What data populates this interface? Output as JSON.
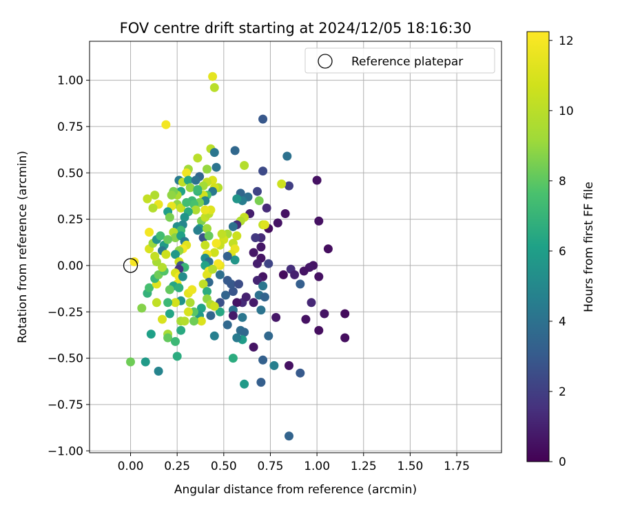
{
  "chart_data": {
    "type": "scatter",
    "title": "FOV centre drift starting at 2024/12/05 18:16:30",
    "xlabel": "Angular distance from reference (arcmin)",
    "ylabel": "Rotation from reference (arcmin)",
    "xlim": [
      -0.22,
      1.99
    ],
    "ylim": [
      -1.01,
      1.21
    ],
    "xticks": [
      "0.00",
      "0.25",
      "0.50",
      "0.75",
      "1.00",
      "1.25",
      "1.50",
      "1.75"
    ],
    "yticks": [
      "−1.00",
      "−0.75",
      "−0.50",
      "−0.25",
      "0.00",
      "0.25",
      "0.50",
      "0.75",
      "1.00"
    ],
    "grid": true,
    "legend": {
      "position": "top-right",
      "entries": [
        "Reference platepar"
      ]
    },
    "reference_point": {
      "x": 0.0,
      "y": 0.0
    },
    "colorbar": {
      "label": "Hours from first FF file",
      "min": 0,
      "max": 12.25,
      "ticks": [
        "0",
        "2",
        "4",
        "6",
        "8",
        "10",
        "12"
      ],
      "colormap": "viridis"
    },
    "series": [
      {
        "points": [
          [
            1.0,
            0.46,
            0.5
          ],
          [
            1.01,
            0.24,
            0.5
          ],
          [
            1.06,
            0.09,
            0.4
          ],
          [
            0.98,
            0.0,
            0.6
          ],
          [
            0.96,
            -0.01,
            0.7
          ],
          [
            1.01,
            -0.06,
            0.5
          ],
          [
            0.93,
            -0.03,
            0.6
          ],
          [
            0.83,
            0.28,
            0.5
          ],
          [
            0.79,
            0.23,
            0.6
          ],
          [
            0.74,
            0.2,
            0.4
          ],
          [
            0.82,
            -0.05,
            0.3
          ],
          [
            0.86,
            -0.02,
            1.4
          ],
          [
            0.88,
            -0.05,
            1.0
          ],
          [
            0.91,
            -0.1,
            3.2
          ],
          [
            0.97,
            -0.2,
            1.2
          ],
          [
            1.04,
            -0.26,
            0.6
          ],
          [
            0.94,
            -0.29,
            0.5
          ],
          [
            1.01,
            -0.35,
            0.4
          ],
          [
            1.15,
            -0.26,
            0.3
          ],
          [
            1.15,
            -0.39,
            0.4
          ],
          [
            0.78,
            -0.28,
            0.7
          ],
          [
            0.85,
            -0.54,
            0.5
          ],
          [
            0.91,
            -0.58,
            3.0
          ],
          [
            0.85,
            -0.92,
            3.4
          ],
          [
            0.77,
            -0.54,
            4.6
          ],
          [
            0.7,
            -0.63,
            3.2
          ],
          [
            0.61,
            -0.64,
            5.8
          ],
          [
            0.71,
            -0.51,
            3.3
          ],
          [
            0.74,
            -0.38,
            3.6
          ],
          [
            0.66,
            -0.44,
            0.6
          ],
          [
            0.71,
            0.79,
            2.9
          ],
          [
            0.84,
            0.59,
            4.0
          ],
          [
            0.85,
            0.43,
            2.0
          ],
          [
            0.81,
            0.44,
            10.6
          ],
          [
            0.71,
            0.51,
            2.4
          ],
          [
            0.68,
            0.4,
            2.2
          ],
          [
            0.69,
            0.35,
            8.5
          ],
          [
            0.73,
            0.31,
            1.3
          ],
          [
            0.71,
            0.22,
            10.3
          ],
          [
            0.72,
            0.22,
            11.2
          ],
          [
            0.7,
            0.15,
            1.3
          ],
          [
            0.67,
            0.15,
            1.8
          ],
          [
            0.7,
            0.1,
            0.7
          ],
          [
            0.66,
            0.07,
            0.7
          ],
          [
            0.7,
            0.04,
            0.6
          ],
          [
            0.68,
            0.01,
            0.9
          ],
          [
            0.74,
            0.01,
            2.2
          ],
          [
            0.71,
            -0.06,
            0.6
          ],
          [
            0.68,
            -0.08,
            1.1
          ],
          [
            0.71,
            -0.11,
            4.2
          ],
          [
            0.69,
            -0.16,
            4.0
          ],
          [
            0.72,
            -0.17,
            3.4
          ],
          [
            0.66,
            -0.2,
            0.8
          ],
          [
            0.7,
            -0.24,
            4.1
          ],
          [
            0.6,
            -0.2,
            1.3
          ],
          [
            0.62,
            -0.17,
            1.0
          ],
          [
            0.57,
            -0.2,
            0.6
          ],
          [
            0.55,
            -0.24,
            4.0
          ],
          [
            0.55,
            -0.27,
            0.8
          ],
          [
            0.6,
            -0.28,
            4.2
          ],
          [
            0.52,
            -0.32,
            3.6
          ],
          [
            0.59,
            -0.35,
            3.8
          ],
          [
            0.61,
            -0.36,
            3.6
          ],
          [
            0.6,
            -0.4,
            5.9
          ],
          [
            0.57,
            -0.39,
            4.4
          ],
          [
            0.55,
            -0.5,
            6.6
          ],
          [
            0.45,
            -0.38,
            4.6
          ],
          [
            0.48,
            -0.2,
            2.6
          ],
          [
            0.48,
            -0.25,
            6.4
          ],
          [
            0.51,
            -0.16,
            3.4
          ],
          [
            0.55,
            -0.14,
            2.8
          ],
          [
            0.54,
            -0.1,
            2.9
          ],
          [
            0.58,
            -0.1,
            2.5
          ],
          [
            0.52,
            -0.08,
            3.0
          ],
          [
            0.48,
            -0.05,
            3.9
          ],
          [
            0.43,
            0.63,
            10.0
          ],
          [
            0.45,
            0.61,
            4.2
          ],
          [
            0.46,
            0.53,
            4.1
          ],
          [
            0.41,
            0.52,
            9.0
          ],
          [
            0.37,
            0.48,
            3.5
          ],
          [
            0.44,
            0.46,
            11.1
          ],
          [
            0.41,
            0.45,
            10.3
          ],
          [
            0.39,
            0.43,
            9.3
          ],
          [
            0.47,
            0.42,
            9.8
          ],
          [
            0.45,
            0.42,
            10.8
          ],
          [
            0.56,
            0.62,
            3.6
          ],
          [
            0.61,
            0.54,
            9.8
          ],
          [
            0.59,
            0.39,
            3.5
          ],
          [
            0.63,
            0.37,
            3.9
          ],
          [
            0.6,
            0.35,
            4.5
          ],
          [
            0.57,
            0.36,
            5.6
          ],
          [
            0.64,
            0.28,
            0.9
          ],
          [
            0.61,
            0.26,
            10.4
          ],
          [
            0.59,
            0.24,
            9.7
          ],
          [
            0.57,
            0.22,
            1.4
          ],
          [
            0.55,
            0.21,
            4.0
          ],
          [
            0.57,
            0.16,
            10.6
          ],
          [
            0.55,
            0.12,
            10.3
          ],
          [
            0.56,
            0.09,
            11.6
          ],
          [
            0.54,
            0.06,
            11.2
          ],
          [
            0.56,
            0.03,
            5.6
          ],
          [
            0.52,
            0.05,
            3.3
          ],
          [
            0.52,
            0.17,
            9.4
          ],
          [
            0.5,
            0.14,
            10.8
          ],
          [
            0.49,
            0.17,
            10.2
          ],
          [
            0.48,
            0.11,
            10.5
          ],
          [
            0.46,
            0.12,
            11.9
          ],
          [
            0.45,
            0.07,
            10.7
          ],
          [
            0.48,
            0.0,
            11.5
          ],
          [
            0.47,
            0.01,
            12.0
          ],
          [
            0.44,
            1.02,
            11.4
          ],
          [
            0.45,
            0.96,
            10.0
          ],
          [
            0.44,
            0.4,
            4.3
          ],
          [
            0.41,
            0.38,
            7.6
          ],
          [
            0.39,
            0.38,
            10.7
          ],
          [
            0.4,
            0.35,
            4.8
          ],
          [
            0.37,
            0.34,
            8.5
          ],
          [
            0.36,
            0.4,
            6.8
          ],
          [
            0.33,
            0.35,
            7.2
          ],
          [
            0.34,
            0.33,
            7.6
          ],
          [
            0.35,
            0.3,
            9.6
          ],
          [
            0.38,
            0.24,
            8.6
          ],
          [
            0.37,
            0.2,
            5.8
          ],
          [
            0.36,
            0.19,
            4.6
          ],
          [
            0.39,
            0.15,
            2.7
          ],
          [
            0.41,
            0.2,
            9.2
          ],
          [
            0.4,
            0.26,
            10.3
          ],
          [
            0.42,
            0.28,
            10.0
          ],
          [
            0.43,
            0.3,
            11.2
          ],
          [
            0.4,
            0.3,
            11.6
          ],
          [
            0.42,
            0.16,
            8.2
          ],
          [
            0.4,
            0.11,
            10.4
          ],
          [
            0.41,
            0.06,
            11.8
          ],
          [
            0.4,
            0.04,
            5.3
          ],
          [
            0.42,
            0.02,
            4.0
          ],
          [
            0.4,
            0.0,
            6.2
          ],
          [
            0.42,
            -0.03,
            12.0
          ],
          [
            0.41,
            -0.05,
            11.3
          ],
          [
            0.44,
            -0.02,
            9.9
          ],
          [
            0.42,
            -0.09,
            3.6
          ],
          [
            0.39,
            -0.1,
            10.2
          ],
          [
            0.41,
            -0.14,
            6.6
          ],
          [
            0.41,
            -0.18,
            8.9
          ],
          [
            0.43,
            -0.21,
            9.7
          ],
          [
            0.45,
            -0.22,
            10.6
          ],
          [
            0.43,
            -0.27,
            3.5
          ],
          [
            0.38,
            -0.23,
            6.2
          ],
          [
            0.37,
            -0.27,
            5.7
          ],
          [
            0.38,
            -0.3,
            11.1
          ],
          [
            0.34,
            -0.3,
            8.3
          ],
          [
            0.34,
            -0.25,
            7.9
          ],
          [
            0.31,
            -0.25,
            11.0
          ],
          [
            0.32,
            -0.2,
            9.6
          ],
          [
            0.31,
            -0.15,
            11.4
          ],
          [
            0.33,
            -0.13,
            11.7
          ],
          [
            0.36,
            0.58,
            10.0
          ],
          [
            0.31,
            0.52,
            9.2
          ],
          [
            0.3,
            0.5,
            11.8
          ],
          [
            0.26,
            0.46,
            4.4
          ],
          [
            0.28,
            0.45,
            10.2
          ],
          [
            0.27,
            0.4,
            6.2
          ],
          [
            0.25,
            0.38,
            9.5
          ],
          [
            0.23,
            0.4,
            8.5
          ],
          [
            0.25,
            0.33,
            8.9
          ],
          [
            0.27,
            0.31,
            10.4
          ],
          [
            0.3,
            0.34,
            7.4
          ],
          [
            0.31,
            0.29,
            6.6
          ],
          [
            0.29,
            0.26,
            5.6
          ],
          [
            0.28,
            0.22,
            4.9
          ],
          [
            0.25,
            0.21,
            5.3
          ],
          [
            0.27,
            0.19,
            7.3
          ],
          [
            0.23,
            0.18,
            10.0
          ],
          [
            0.24,
            0.15,
            8.7
          ],
          [
            0.27,
            0.16,
            6.1
          ],
          [
            0.29,
            0.13,
            4.4
          ],
          [
            0.3,
            0.11,
            11.3
          ],
          [
            0.28,
            0.09,
            11.9
          ],
          [
            0.26,
            0.08,
            8.9
          ],
          [
            0.24,
            0.06,
            5.7
          ],
          [
            0.26,
            0.02,
            10.7
          ],
          [
            0.27,
            0.0,
            2.7
          ],
          [
            0.29,
            -0.01,
            7.1
          ],
          [
            0.26,
            -0.02,
            1.6
          ],
          [
            0.24,
            -0.04,
            11.0
          ],
          [
            0.26,
            -0.06,
            11.8
          ],
          [
            0.28,
            -0.06,
            5.2
          ],
          [
            0.25,
            -0.1,
            11.5
          ],
          [
            0.23,
            -0.11,
            6.3
          ],
          [
            0.21,
            -0.13,
            8.1
          ],
          [
            0.26,
            -0.12,
            6.7
          ],
          [
            0.27,
            -0.19,
            5.5
          ],
          [
            0.24,
            -0.2,
            10.8
          ],
          [
            0.2,
            -0.2,
            7.2
          ],
          [
            0.21,
            -0.26,
            6.3
          ],
          [
            0.27,
            -0.3,
            9.4
          ],
          [
            0.29,
            -0.3,
            9.8
          ],
          [
            0.27,
            -0.35,
            6.5
          ],
          [
            0.2,
            -0.37,
            9.4
          ],
          [
            0.2,
            -0.39,
            8.1
          ],
          [
            0.24,
            -0.41,
            7.2
          ],
          [
            0.25,
            -0.49,
            6.6
          ],
          [
            0.15,
            -0.57,
            4.8
          ],
          [
            0.08,
            -0.52,
            5.8
          ],
          [
            0.0,
            -0.52,
            8.3
          ],
          [
            0.11,
            -0.37,
            6.1
          ],
          [
            0.17,
            -0.29,
            11.0
          ],
          [
            0.06,
            -0.23,
            8.7
          ],
          [
            0.14,
            -0.2,
            10.2
          ],
          [
            0.09,
            -0.15,
            6.9
          ],
          [
            0.1,
            -0.12,
            7.5
          ],
          [
            0.14,
            -0.1,
            11.3
          ],
          [
            0.13,
            -0.07,
            7.1
          ],
          [
            0.15,
            -0.05,
            8.3
          ],
          [
            0.18,
            -0.03,
            7.8
          ],
          [
            0.17,
            -0.01,
            9.8
          ],
          [
            0.14,
            0.02,
            9.4
          ],
          [
            0.13,
            0.05,
            10.3
          ],
          [
            0.1,
            0.09,
            11.0
          ],
          [
            0.12,
            0.12,
            9.1
          ],
          [
            0.14,
            0.14,
            5.6
          ],
          [
            0.16,
            0.16,
            7.4
          ],
          [
            0.18,
            0.11,
            5.8
          ],
          [
            0.2,
            0.14,
            8.2
          ],
          [
            0.17,
            0.08,
            4.3
          ],
          [
            0.19,
            0.06,
            10.6
          ],
          [
            0.15,
            0.33,
            11.6
          ],
          [
            0.13,
            0.38,
            9.7
          ],
          [
            0.12,
            0.31,
            9.8
          ],
          [
            0.09,
            0.36,
            10.3
          ],
          [
            0.1,
            0.18,
            11.9
          ],
          [
            0.02,
            0.02,
            12.0
          ],
          [
            0.22,
            0.32,
            11.5
          ],
          [
            0.2,
            0.29,
            6.0
          ],
          [
            0.19,
            0.76,
            11.9
          ],
          [
            0.21,
            0.26,
            8.5
          ],
          [
            0.22,
            0.38,
            8.9
          ],
          [
            0.31,
            0.46,
            6.4
          ],
          [
            0.32,
            0.42,
            9.0
          ],
          [
            0.35,
            0.46,
            4.0
          ],
          [
            0.36,
            0.41,
            7.2
          ]
        ]
      }
    ]
  }
}
